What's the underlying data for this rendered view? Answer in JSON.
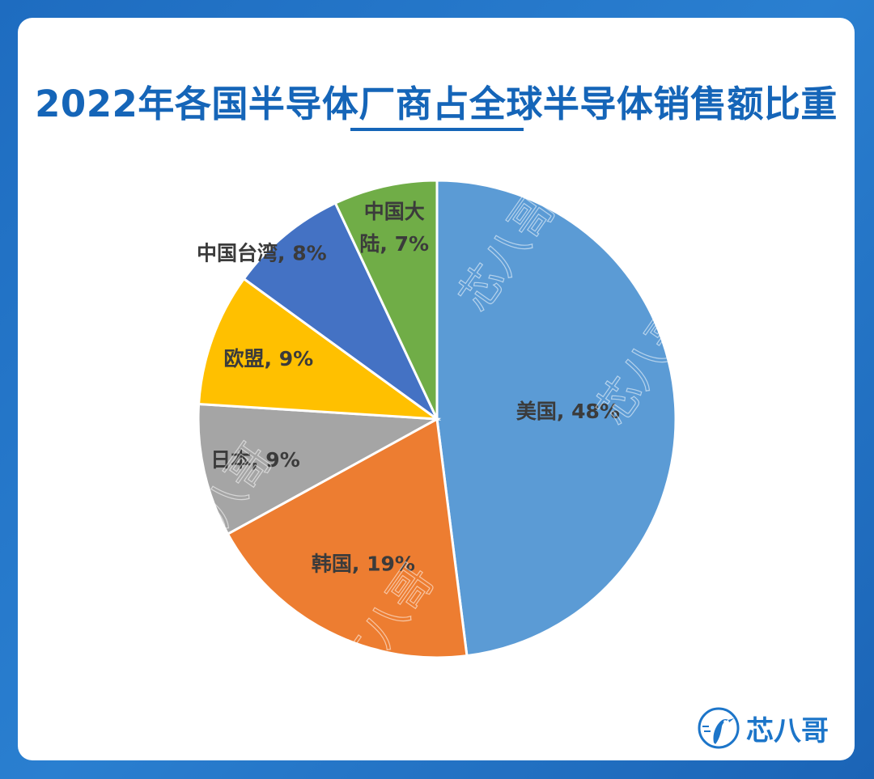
{
  "chart_data": {
    "type": "pie",
    "title": "2022年各国半导体厂商占全球半导体销售额比重",
    "slices": [
      {
        "label": "美国",
        "value": 48,
        "display": "美国, 48%",
        "color": "#5b9bd5"
      },
      {
        "label": "韩国",
        "value": 19,
        "display": "韩国, 19%",
        "color": "#ed7d31"
      },
      {
        "label": "日本",
        "value": 9,
        "display": "日本, 9%",
        "color": "#a5a5a5"
      },
      {
        "label": "欧盟",
        "value": 9,
        "display": "欧盟, 9%",
        "color": "#ffc000"
      },
      {
        "label": "中国台湾",
        "value": 8,
        "display": "中国台湾, 8%",
        "color": "#4472c4"
      },
      {
        "label": "中国大陆",
        "value": 7,
        "display_lines": [
          "中国大",
          "陆, 7%"
        ],
        "color": "#70ad47"
      }
    ],
    "start_angle": "12 o'clock",
    "direction": "clockwise",
    "legend": "none",
    "labels": "category and percent on slices"
  },
  "brand": {
    "name": "芯八哥",
    "icon": "bird-logo-icon",
    "color": "#1c75c9"
  },
  "watermark": {
    "text": "芯八哥"
  }
}
